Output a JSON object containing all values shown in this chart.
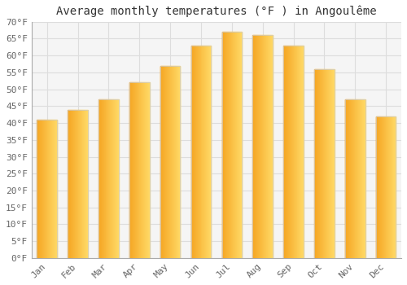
{
  "title": "Average monthly temperatures (°F ) in Angoulême",
  "months": [
    "Jan",
    "Feb",
    "Mar",
    "Apr",
    "May",
    "Jun",
    "Jul",
    "Aug",
    "Sep",
    "Oct",
    "Nov",
    "Dec"
  ],
  "values": [
    41,
    44,
    47,
    52,
    57,
    63,
    67,
    66,
    63,
    56,
    47,
    42
  ],
  "bar_color_left": "#F5A623",
  "bar_color_right": "#FFD966",
  "ylim": [
    0,
    70
  ],
  "yticks": [
    0,
    5,
    10,
    15,
    20,
    25,
    30,
    35,
    40,
    45,
    50,
    55,
    60,
    65,
    70
  ],
  "background_color": "#ffffff",
  "plot_bg_color": "#f5f5f5",
  "grid_color": "#dddddd",
  "title_fontsize": 10,
  "tick_fontsize": 8,
  "tick_color": "#666666"
}
